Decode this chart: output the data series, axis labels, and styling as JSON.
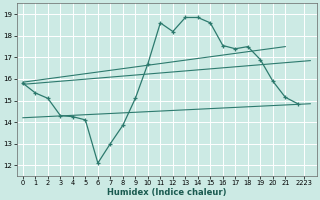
{
  "title": "",
  "xlabel": "Humidex (Indice chaleur)",
  "ylabel": "",
  "bg_color": "#cceae4",
  "grid_color": "#ffffff",
  "line_color": "#2d7a6e",
  "xlim": [
    -0.5,
    23.5
  ],
  "ylim": [
    11.5,
    19.5
  ],
  "yticks": [
    12,
    13,
    14,
    15,
    16,
    17,
    18,
    19
  ],
  "xtick_labels": [
    "0",
    "1",
    "2",
    "3",
    "4",
    "5",
    "6",
    "7",
    "8",
    "9",
    "10",
    "11",
    "12",
    "13",
    "14",
    "15",
    "16",
    "17",
    "18",
    "19",
    "20",
    "21",
    "2223"
  ],
  "xtick_positions": [
    0,
    1,
    2,
    3,
    4,
    5,
    6,
    7,
    8,
    9,
    10,
    11,
    12,
    13,
    14,
    15,
    16,
    17,
    18,
    19,
    20,
    21,
    22.5
  ],
  "series": [
    {
      "x": [
        0,
        1,
        2,
        3,
        4,
        5,
        6,
        7,
        8,
        9,
        10,
        11,
        12,
        13,
        14,
        15,
        16,
        17,
        18,
        19,
        20,
        21,
        22
      ],
      "y": [
        15.8,
        15.35,
        15.1,
        14.3,
        14.25,
        14.1,
        12.1,
        13.0,
        13.85,
        15.1,
        16.7,
        18.6,
        18.2,
        18.85,
        18.85,
        18.6,
        17.55,
        17.4,
        17.5,
        16.9,
        15.9,
        15.15,
        14.85
      ],
      "marker": true
    },
    {
      "x": [
        0,
        21
      ],
      "y": [
        15.85,
        17.5
      ],
      "marker": false
    },
    {
      "x": [
        0,
        23
      ],
      "y": [
        15.75,
        16.85
      ],
      "marker": false
    },
    {
      "x": [
        0,
        23
      ],
      "y": [
        14.2,
        14.85
      ],
      "marker": false
    }
  ]
}
